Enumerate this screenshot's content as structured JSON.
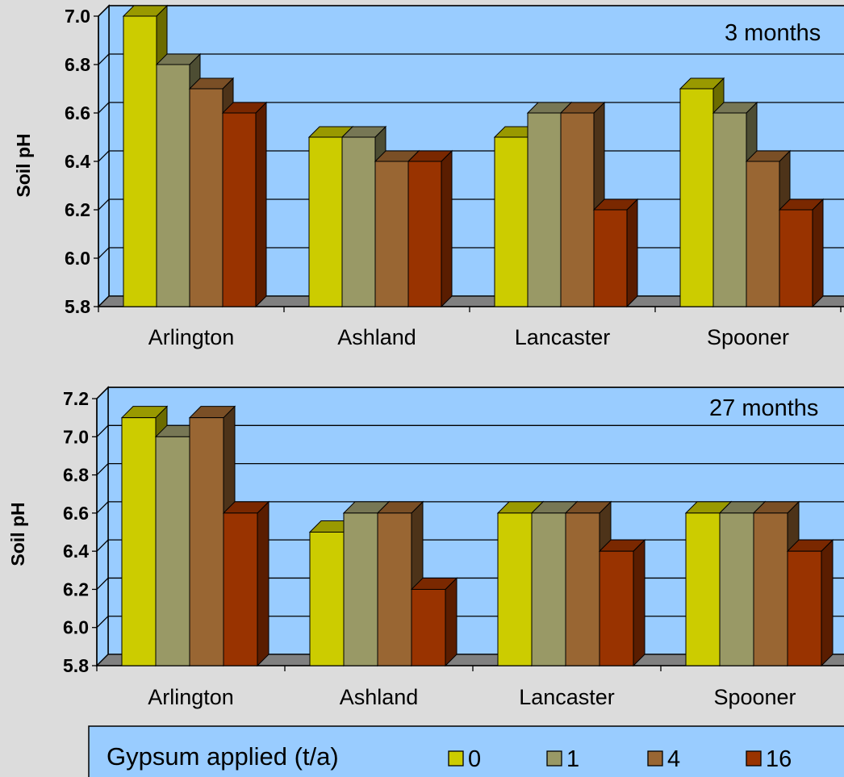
{
  "chart_data": [
    {
      "type": "bar",
      "annotation": "3 months",
      "ylabel": "Soil pH",
      "xlabel": "",
      "ylim": [
        5.8,
        7.0
      ],
      "yticks": [
        "5.8",
        "6.0",
        "6.2",
        "6.4",
        "6.6",
        "6.8",
        "7.0"
      ],
      "categories": [
        "Arlington",
        "Ashland",
        "Lancaster",
        "Spooner"
      ],
      "series": [
        {
          "name": "0",
          "values": [
            7.0,
            6.5,
            6.5,
            6.7
          ]
        },
        {
          "name": "1",
          "values": [
            6.8,
            6.5,
            6.6,
            6.6
          ]
        },
        {
          "name": "4",
          "values": [
            6.7,
            6.4,
            6.6,
            6.4
          ]
        },
        {
          "name": "16",
          "values": [
            6.6,
            6.4,
            6.2,
            6.2
          ]
        }
      ],
      "grid": true
    },
    {
      "type": "bar",
      "annotation": "27 months",
      "ylabel": "Soil pH",
      "xlabel": "",
      "ylim": [
        5.8,
        7.2
      ],
      "yticks": [
        "5.8",
        "6.0",
        "6.2",
        "6.4",
        "6.6",
        "6.8",
        "7.0",
        "7.2"
      ],
      "categories": [
        "Arlington",
        "Ashland",
        "Lancaster",
        "Spooner"
      ],
      "series": [
        {
          "name": "0",
          "values": [
            7.1,
            6.5,
            6.6,
            6.6
          ]
        },
        {
          "name": "1",
          "values": [
            7.0,
            6.6,
            6.6,
            6.6
          ]
        },
        {
          "name": "4",
          "values": [
            7.1,
            6.6,
            6.6,
            6.6
          ]
        },
        {
          "name": "16",
          "values": [
            6.6,
            6.2,
            6.4,
            6.4
          ]
        }
      ],
      "grid": true
    }
  ],
  "legend": {
    "title": "Gypsum applied (t/a)",
    "placement": "bottom",
    "items": [
      "0",
      "1",
      "4",
      "16"
    ]
  },
  "colors": {
    "background": "#dcdcdc",
    "plot_area": "#99ccff",
    "floor": "#808080",
    "series": [
      "#cccc00",
      "#999966",
      "#996633",
      "#993300"
    ],
    "series_top": [
      "#999900",
      "#777755",
      "#7a4f26",
      "#7a2800"
    ],
    "series_side": [
      "#6b6b00",
      "#4d4d33",
      "#4d3319",
      "#5a1d00"
    ]
  }
}
